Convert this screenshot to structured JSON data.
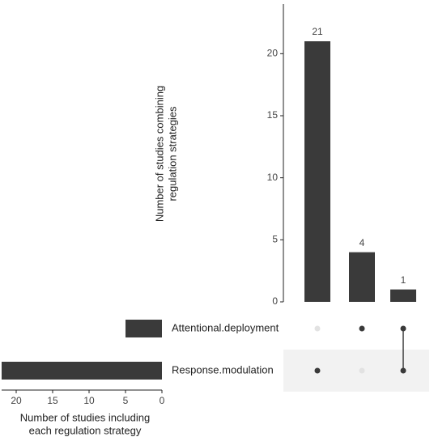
{
  "chart_data": {
    "type": "upset",
    "ylabel": [
      "Number of studies combining",
      "regulation strategies"
    ],
    "values": [
      21,
      4,
      1
    ],
    "ylim": [
      0,
      24
    ],
    "yticks": [
      0,
      5,
      10,
      15,
      20
    ],
    "sets": [
      "Attentional.deployment",
      "Response.modulation"
    ],
    "set_sizes": [
      5,
      22
    ],
    "xlim": [
      22,
      0
    ],
    "xticks": [
      20,
      15,
      10,
      5,
      0
    ],
    "xlabel": [
      "Number of studies including",
      "each regulation strategy"
    ],
    "membership": [
      [
        false,
        true
      ],
      [
        true,
        false
      ],
      [
        true,
        true
      ]
    ],
    "color": "#3a3a3a",
    "dot_off_color": "#e2e2e2",
    "shade_color": "#f2f2f2"
  }
}
